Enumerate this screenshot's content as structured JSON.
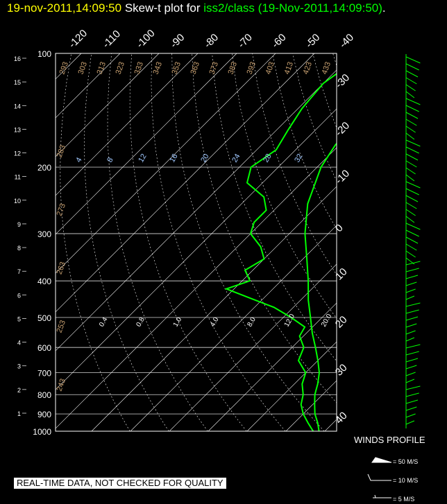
{
  "title": {
    "timestamp": "19-nov-2011,14:09:50",
    "prefix": "Skew-t plot for",
    "station": "iss2/class",
    "paren": "(19-Nov-2011,14:09:50)",
    "suffix": "."
  },
  "disclaimer": "REAL-TIME DATA, NOT CHECKED FOR QUALITY",
  "winds_legend": {
    "title": "WINDS PROFILE",
    "items": [
      "= 50 M/S",
      "= 10 M/S",
      "= 5 M/S"
    ]
  },
  "colors": {
    "sounding": "#00ff00",
    "title_time": "#ffff00",
    "grid": "#ffffff",
    "dry_adiabat": "#c8a070",
    "mixing": "#a0c8ff"
  },
  "chart_data": {
    "type": "skew-t",
    "pressure_levels": [
      100,
      200,
      300,
      400,
      500,
      600,
      700,
      800,
      900,
      1000
    ],
    "pressure_labels": [
      "100",
      "200",
      "300",
      "400",
      "500",
      "600",
      "700",
      "800",
      "900",
      "1000"
    ],
    "height_km_ticks": [
      "16",
      "15",
      "14",
      "13",
      "12",
      "11",
      "10",
      "9",
      "8",
      "7",
      "6",
      "5",
      "4",
      "3",
      "2",
      "1"
    ],
    "temperature_ticks_top": [
      "-120",
      "-110",
      "-100",
      "-90",
      "-80",
      "-70",
      "-60",
      "-50",
      "-40"
    ],
    "temperature_ticks_right": [
      "-30",
      "-20",
      "-10",
      "0",
      "10",
      "20",
      "30",
      "40"
    ],
    "dry_adiabat_labels": [
      "293",
      "303",
      "313",
      "323",
      "333",
      "343",
      "353",
      "363",
      "373",
      "383",
      "393",
      "403",
      "413",
      "423",
      "433",
      "283",
      "273",
      "263",
      "253",
      "243"
    ],
    "mixing_ratio_labels": [
      "4",
      "8",
      "12",
      "16",
      "20",
      "24",
      "28",
      "32"
    ],
    "lower_mixing_labels": [
      "0.4",
      "0.8",
      "1.0",
      "4.0",
      "8.0",
      "12.0",
      "20.0"
    ],
    "temperature_profile": [
      {
        "p": 1000,
        "t": 8.5
      },
      {
        "p": 950,
        "t": 6
      },
      {
        "p": 900,
        "t": 3
      },
      {
        "p": 850,
        "t": 0.5
      },
      {
        "p": 800,
        "t": -2
      },
      {
        "p": 750,
        "t": -4
      },
      {
        "p": 700,
        "t": -6.5
      },
      {
        "p": 650,
        "t": -10
      },
      {
        "p": 600,
        "t": -14
      },
      {
        "p": 550,
        "t": -18.5
      },
      {
        "p": 500,
        "t": -23
      },
      {
        "p": 450,
        "t": -28
      },
      {
        "p": 400,
        "t": -33
      },
      {
        "p": 350,
        "t": -39
      },
      {
        "p": 300,
        "t": -46
      },
      {
        "p": 250,
        "t": -53
      },
      {
        "p": 200,
        "t": -59
      },
      {
        "p": 175,
        "t": -61
      },
      {
        "p": 150,
        "t": -62
      },
      {
        "p": 125,
        "t": -60
      },
      {
        "p": 100,
        "t": -56
      }
    ],
    "dewpoint_profile": [
      {
        "p": 1000,
        "t": 7
      },
      {
        "p": 950,
        "t": 3.5
      },
      {
        "p": 900,
        "t": 0
      },
      {
        "p": 850,
        "t": -3
      },
      {
        "p": 800,
        "t": -5
      },
      {
        "p": 750,
        "t": -8
      },
      {
        "p": 700,
        "t": -10
      },
      {
        "p": 650,
        "t": -15
      },
      {
        "p": 600,
        "t": -17
      },
      {
        "p": 560,
        "t": -21
      },
      {
        "p": 530,
        "t": -22
      },
      {
        "p": 500,
        "t": -28
      },
      {
        "p": 470,
        "t": -35
      },
      {
        "p": 440,
        "t": -45
      },
      {
        "p": 420,
        "t": -52
      },
      {
        "p": 400,
        "t": -48
      },
      {
        "p": 375,
        "t": -52
      },
      {
        "p": 350,
        "t": -50
      },
      {
        "p": 325,
        "t": -54
      },
      {
        "p": 300,
        "t": -60
      },
      {
        "p": 280,
        "t": -62
      },
      {
        "p": 260,
        "t": -62
      },
      {
        "p": 240,
        "t": -66
      },
      {
        "p": 220,
        "t": -74
      },
      {
        "p": 200,
        "t": -77
      },
      {
        "p": 180,
        "t": -75
      },
      {
        "p": 160,
        "t": -77
      },
      {
        "p": 140,
        "t": -79
      },
      {
        "p": 120,
        "t": -80
      },
      {
        "p": 100,
        "t": -77
      }
    ]
  }
}
